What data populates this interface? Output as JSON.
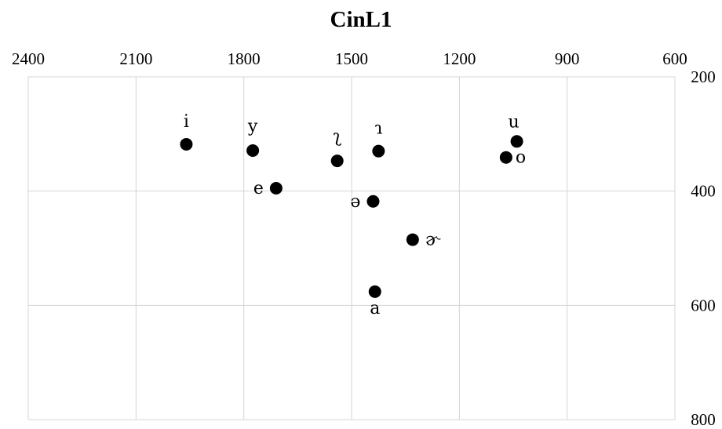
{
  "chart_data": {
    "type": "scatter",
    "title": "CinL1",
    "xlabel": "",
    "ylabel": "",
    "x_axis": {
      "reversed": true,
      "position": "top",
      "range": [
        600,
        2400
      ],
      "ticks": [
        2400,
        2100,
        1800,
        1500,
        1200,
        900,
        600
      ]
    },
    "y_axis": {
      "reversed": true,
      "position": "right",
      "range": [
        200,
        800
      ],
      "ticks": [
        200,
        400,
        600,
        800
      ]
    },
    "grid": true,
    "legend": "none",
    "points": [
      {
        "label": "i",
        "x": 1960,
        "y": 318
      },
      {
        "label": "y",
        "x": 1775,
        "y": 329
      },
      {
        "label": "e",
        "x": 1710,
        "y": 395
      },
      {
        "label": "ʅ",
        "x": 1540,
        "y": 347
      },
      {
        "label": "ɿ",
        "x": 1425,
        "y": 330
      },
      {
        "label": "ə",
        "x": 1440,
        "y": 418
      },
      {
        "label": "ɚ",
        "x": 1330,
        "y": 485
      },
      {
        "label": "a",
        "x": 1435,
        "y": 576
      },
      {
        "label": "u",
        "x": 1040,
        "y": 313
      },
      {
        "label": "o",
        "x": 1070,
        "y": 341
      }
    ]
  }
}
